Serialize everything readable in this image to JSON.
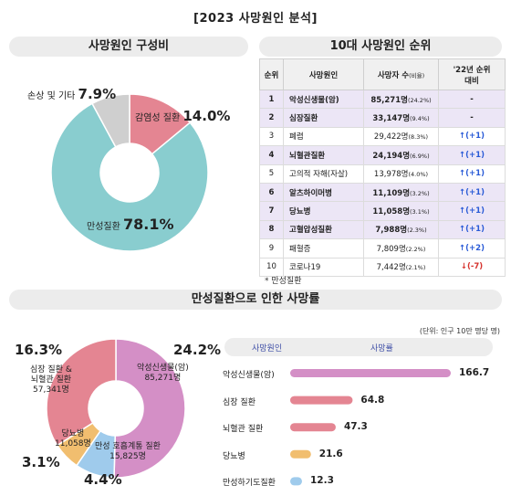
{
  "title": "[2023 사망원인 분석]",
  "sections": {
    "composition": "사망원인 구성비",
    "top10": "10대 사망원인 순위",
    "chronic": "만성질환으로 인한 사망률"
  },
  "colors": {
    "pink": "#e48592",
    "teal": "#89cdcf",
    "gray": "#cfcfcf",
    "violet": "#d48fc6",
    "blue": "#9fcbec",
    "orange": "#f1be6f",
    "highlight_row": "#ece6f6"
  },
  "chart_data": [
    {
      "type": "pie",
      "title": "사망원인 구성비",
      "slices": [
        {
          "label": "감염성 질환",
          "value": 14.0,
          "display": "14.0%"
        },
        {
          "label": "만성질환",
          "value": 78.1,
          "display": "78.1%"
        },
        {
          "label": "손상 및 기타",
          "value": 7.9,
          "display": "7.9%"
        }
      ]
    },
    {
      "type": "table",
      "title": "10대 사망원인 순위",
      "columns": [
        "순위",
        "사망원인",
        "사망자 수",
        "(비율)",
        "'22년 순위",
        "대비"
      ],
      "rows": [
        {
          "rank": "1",
          "cause": "악성신생물(암)",
          "deaths": "85,271명",
          "ratio": "(24.2%)",
          "change": "-",
          "dir": "none",
          "chronic": true
        },
        {
          "rank": "2",
          "cause": "심장질환",
          "deaths": "33,147명",
          "ratio": "(9.4%)",
          "change": "-",
          "dir": "none",
          "chronic": true
        },
        {
          "rank": "3",
          "cause": "폐렴",
          "deaths": "29,422명",
          "ratio": "(8.3%)",
          "change": "↑(+1)",
          "dir": "up",
          "chronic": false
        },
        {
          "rank": "4",
          "cause": "뇌혈관질환",
          "deaths": "24,194명",
          "ratio": "(6.9%)",
          "change": "↑(+1)",
          "dir": "up",
          "chronic": true
        },
        {
          "rank": "5",
          "cause": "고의적 자해(자살)",
          "deaths": "13,978명",
          "ratio": "(4.0%)",
          "change": "↑(+1)",
          "dir": "up",
          "chronic": false
        },
        {
          "rank": "6",
          "cause": "알츠하이머병",
          "deaths": "11,109명",
          "ratio": "(3.2%)",
          "change": "↑(+1)",
          "dir": "up",
          "chronic": true
        },
        {
          "rank": "7",
          "cause": "당뇨병",
          "deaths": "11,058명",
          "ratio": "(3.1%)",
          "change": "↑(+1)",
          "dir": "up",
          "chronic": true
        },
        {
          "rank": "8",
          "cause": "고혈압성질환",
          "deaths": "7,988명",
          "ratio": "(2.3%)",
          "change": "↑(+1)",
          "dir": "up",
          "chronic": true
        },
        {
          "rank": "9",
          "cause": "패혈증",
          "deaths": "7,809명",
          "ratio": "(2.2%)",
          "change": "↑(+2)",
          "dir": "up",
          "chronic": false
        },
        {
          "rank": "10",
          "cause": "코로나19",
          "deaths": "7,442명",
          "ratio": "(2.1%)",
          "change": "↓(-7)",
          "dir": "down",
          "chronic": false
        }
      ],
      "footnote": "* 만성질환"
    },
    {
      "type": "pie",
      "title": "만성질환으로 인한 사망률",
      "slices": [
        {
          "label": "악성신생물(암)",
          "count": "85,271명",
          "value": 24.2,
          "display": "24.2%"
        },
        {
          "label": "만성 호흡계통 질환",
          "count": "15,825명",
          "value": 4.4,
          "display": "4.4%"
        },
        {
          "label": "당뇨병",
          "count": "11,058명",
          "value": 3.1,
          "display": "3.1%"
        },
        {
          "label_lines": [
            "심장 질환 &",
            "뇌혈관 질환"
          ],
          "count": "57,341명",
          "value": 16.3,
          "display": "16.3%"
        }
      ]
    },
    {
      "type": "bar",
      "orientation": "horizontal",
      "unit_note": "(단위: 인구 10만 명당 명)",
      "header_category": "사망원인",
      "header_value": "사망률",
      "categories": [
        "악성신생물(암)",
        "심장 질환",
        "뇌혈관 질환",
        "당뇨병",
        "만성하기도질환"
      ],
      "values": [
        166.7,
        64.8,
        47.3,
        21.6,
        12.3
      ],
      "value_labels": [
        "166.7",
        "64.8",
        "47.3",
        "21.6",
        "12.3"
      ],
      "xlim": [
        0,
        166.7
      ]
    }
  ]
}
